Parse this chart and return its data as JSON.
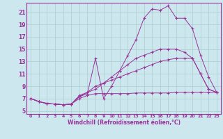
{
  "bg_color": "#cce8ee",
  "line_color": "#993399",
  "grid_color": "#aacccc",
  "xlabel": "Windchill (Refroidissement éolien,°C)",
  "ylabel_ticks": [
    5,
    7,
    9,
    11,
    13,
    15,
    17,
    19,
    21
  ],
  "xlabel_ticks": [
    0,
    1,
    2,
    3,
    4,
    5,
    6,
    7,
    8,
    9,
    10,
    11,
    12,
    13,
    14,
    15,
    16,
    17,
    18,
    19,
    20,
    21,
    22,
    23
  ],
  "xlim": [
    -0.5,
    23.5
  ],
  "ylim": [
    4.5,
    22.5
  ],
  "series": [
    {
      "x": [
        0,
        1,
        2,
        3,
        4,
        5,
        6,
        7,
        8,
        9,
        10,
        11,
        12,
        13,
        14,
        15,
        16,
        17,
        18,
        19,
        20,
        21,
        22,
        23
      ],
      "y": [
        7.0,
        6.5,
        6.2,
        6.1,
        6.0,
        6.1,
        7.3,
        7.8,
        13.5,
        7.0,
        9.0,
        11.5,
        14.0,
        16.5,
        20.0,
        21.5,
        21.3,
        22.0,
        20.0,
        20.0,
        18.3,
        14.0,
        10.5,
        8.0
      ]
    },
    {
      "x": [
        0,
        1,
        2,
        3,
        4,
        5,
        6,
        7,
        8,
        9,
        10,
        11,
        12,
        13,
        14,
        15,
        16,
        17,
        18,
        19,
        20,
        21,
        22,
        23
      ],
      "y": [
        7.0,
        6.5,
        6.2,
        6.1,
        6.0,
        6.1,
        7.5,
        8.0,
        8.5,
        9.5,
        10.5,
        11.5,
        12.5,
        13.5,
        14.0,
        14.5,
        15.0,
        15.0,
        15.0,
        14.5,
        13.5,
        11.0,
        8.5,
        8.0
      ]
    },
    {
      "x": [
        0,
        1,
        2,
        3,
        4,
        5,
        6,
        7,
        8,
        9,
        10,
        11,
        12,
        13,
        14,
        15,
        16,
        17,
        18,
        19,
        20,
        21,
        22,
        23
      ],
      "y": [
        7.0,
        6.5,
        6.2,
        6.1,
        6.0,
        6.1,
        7.3,
        8.0,
        9.0,
        9.5,
        10.0,
        10.5,
        11.0,
        11.5,
        12.0,
        12.5,
        13.0,
        13.3,
        13.5,
        13.5,
        13.5,
        11.0,
        8.5,
        8.0
      ]
    },
    {
      "x": [
        0,
        1,
        2,
        3,
        4,
        5,
        6,
        7,
        8,
        9,
        10,
        11,
        12,
        13,
        14,
        15,
        16,
        17,
        18,
        19,
        20,
        21,
        22,
        23
      ],
      "y": [
        7.0,
        6.5,
        6.2,
        6.1,
        6.0,
        6.1,
        7.0,
        7.5,
        7.8,
        7.8,
        7.8,
        7.8,
        7.8,
        7.9,
        7.9,
        7.9,
        7.9,
        7.9,
        8.0,
        8.0,
        8.0,
        8.0,
        8.0,
        8.0
      ]
    }
  ]
}
